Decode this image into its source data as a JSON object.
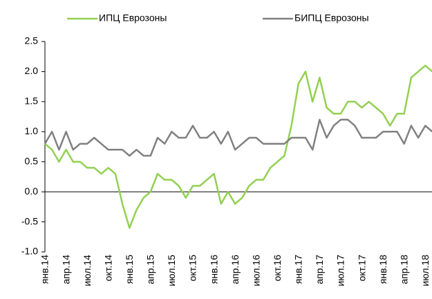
{
  "chart_data": {
    "type": "line",
    "categories": [
      "янв.14",
      null,
      null,
      "апр.14",
      null,
      null,
      "июл.14",
      null,
      null,
      "окт.14",
      null,
      null,
      "янв.15",
      null,
      null,
      "апр.15",
      null,
      null,
      "июл.15",
      null,
      null,
      "окт.15",
      null,
      null,
      "янв.16",
      null,
      null,
      "апр.16",
      null,
      null,
      "июл.16",
      null,
      null,
      "окт.16",
      null,
      null,
      "янв.17",
      null,
      null,
      "апр.17",
      null,
      null,
      "июл.17",
      null,
      null,
      "окт.17",
      null,
      null,
      "янв.18",
      null,
      null,
      "апр.18",
      null,
      null,
      "июл.18",
      null
    ],
    "series": [
      {
        "name": "ИПЦ Еврозоны",
        "color": "#92d050",
        "values": [
          0.8,
          0.7,
          0.5,
          0.7,
          0.5,
          0.5,
          0.4,
          0.4,
          0.3,
          0.4,
          0.3,
          -0.2,
          -0.6,
          -0.3,
          -0.1,
          0.0,
          0.3,
          0.2,
          0.2,
          0.1,
          -0.1,
          0.1,
          0.1,
          0.2,
          0.3,
          -0.2,
          0.0,
          -0.2,
          -0.1,
          0.1,
          0.2,
          0.2,
          0.4,
          0.5,
          0.6,
          1.1,
          1.8,
          2.0,
          1.5,
          1.9,
          1.4,
          1.3,
          1.3,
          1.5,
          1.5,
          1.4,
          1.5,
          1.4,
          1.3,
          1.1,
          1.3,
          1.3,
          1.9,
          2.0,
          2.1,
          2.0
        ]
      },
      {
        "name": "БИПЦ Еврозоны",
        "color": "#808080",
        "values": [
          0.8,
          1.0,
          0.7,
          1.0,
          0.7,
          0.8,
          0.8,
          0.9,
          0.8,
          0.7,
          0.7,
          0.7,
          0.6,
          0.7,
          0.6,
          0.6,
          0.9,
          0.8,
          1.0,
          0.9,
          0.9,
          1.1,
          0.9,
          0.9,
          1.0,
          0.8,
          1.0,
          0.7,
          0.8,
          0.9,
          0.9,
          0.8,
          0.8,
          0.8,
          0.8,
          0.9,
          0.9,
          0.9,
          0.7,
          1.2,
          0.9,
          1.1,
          1.2,
          1.2,
          1.1,
          0.9,
          0.9,
          0.9,
          1.0,
          1.0,
          1.0,
          0.8,
          1.1,
          0.9,
          1.1,
          1.0
        ]
      }
    ],
    "ylim": [
      -1.0,
      2.5
    ],
    "yticks": [
      2.5,
      {
        "value": 2.0,
        "label": "2.0"
      },
      1.5,
      {
        "value": 1.0,
        "label": "1.0"
      },
      0.5,
      {
        "value": 0.0,
        "label": "0.0"
      },
      -0.5,
      {
        "value": -1.0,
        "label": "-1.0"
      }
    ],
    "legend": "top"
  }
}
